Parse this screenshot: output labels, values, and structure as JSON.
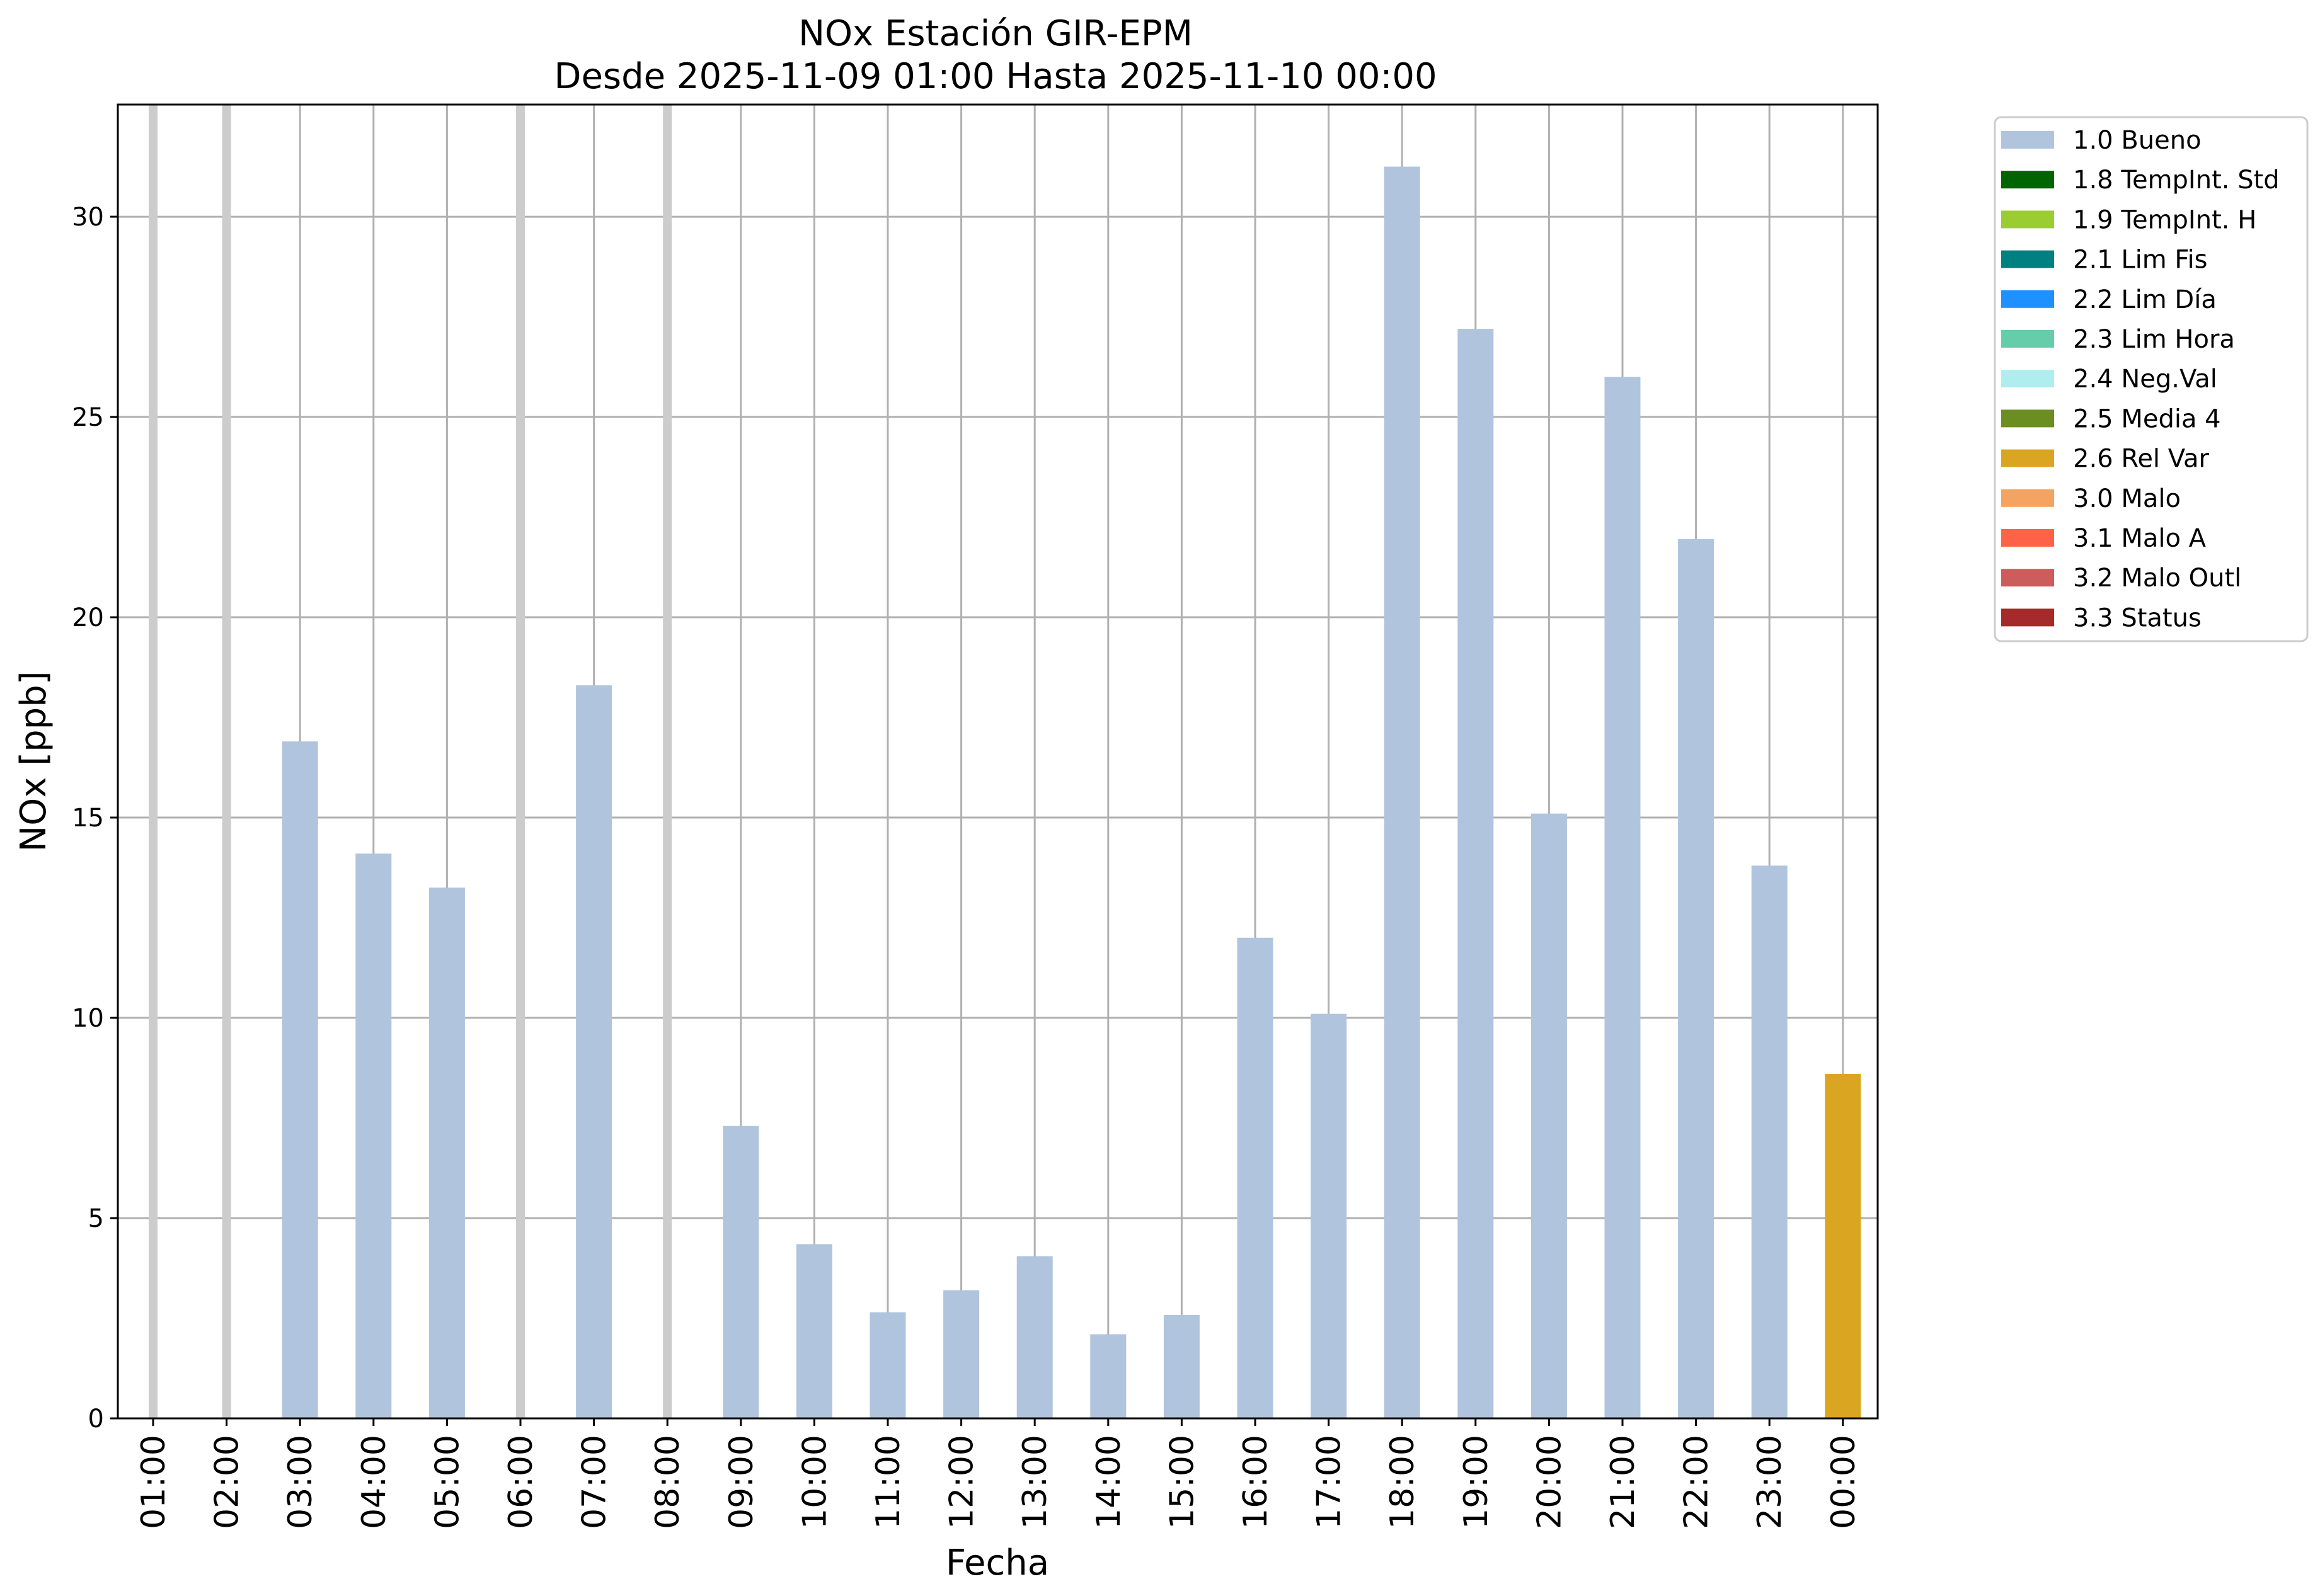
{
  "chart_data": {
    "type": "bar",
    "title": "NOx Estación GIR-EPM",
    "subtitle": "Desde 2025-11-09 01:00 Hasta 2025-11-10 00:00",
    "xlabel": "Fecha",
    "ylabel": "NOx [ppb]",
    "ylim": [
      0,
      32.8
    ],
    "yticks": [
      0,
      5,
      10,
      15,
      20,
      25,
      30
    ],
    "grid": true,
    "legend_placement": "outside-top-right",
    "categories": [
      "01:00",
      "02:00",
      "03:00",
      "04:00",
      "05:00",
      "06:00",
      "07:00",
      "08:00",
      "09:00",
      "10:00",
      "11:00",
      "12:00",
      "13:00",
      "14:00",
      "15:00",
      "16:00",
      "17:00",
      "18:00",
      "19:00",
      "20:00",
      "21:00",
      "22:00",
      "23:00",
      "00:00"
    ],
    "values": [
      null,
      null,
      16.9,
      14.1,
      13.25,
      null,
      18.3,
      null,
      7.3,
      4.35,
      2.65,
      3.2,
      4.05,
      2.1,
      2.58,
      12.0,
      10.1,
      31.25,
      27.2,
      15.1,
      26.0,
      21.95,
      13.8,
      8.6
    ],
    "flags": [
      "missing",
      "missing",
      "1.0 Bueno",
      "1.0 Bueno",
      "1.0 Bueno",
      "missing",
      "1.0 Bueno",
      "missing",
      "1.0 Bueno",
      "1.0 Bueno",
      "1.0 Bueno",
      "1.0 Bueno",
      "1.0 Bueno",
      "1.0 Bueno",
      "1.0 Bueno",
      "1.0 Bueno",
      "1.0 Bueno",
      "1.0 Bueno",
      "1.0 Bueno",
      "1.0 Bueno",
      "1.0 Bueno",
      "1.0 Bueno",
      "1.0 Bueno",
      "2.6 Rel Var"
    ],
    "missing_marker_color": "#cccccc",
    "legend": [
      {
        "label": "1.0 Bueno",
        "color": "#b0c4de"
      },
      {
        "label": "1.8 TempInt. Std",
        "color": "#006400"
      },
      {
        "label": "1.9 TempInt. H",
        "color": "#9acd32"
      },
      {
        "label": "2.1 Lim Fis",
        "color": "#008080"
      },
      {
        "label": "2.2 Lim Día",
        "color": "#1e90ff"
      },
      {
        "label": "2.3 Lim Hora",
        "color": "#66cdaa"
      },
      {
        "label": "2.4 Neg.Val",
        "color": "#afeeee"
      },
      {
        "label": "2.5 Media 4",
        "color": "#6b8e23"
      },
      {
        "label": "2.6 Rel Var",
        "color": "#daa520"
      },
      {
        "label": "3.0 Malo",
        "color": "#f4a460"
      },
      {
        "label": "3.1 Malo A",
        "color": "#ff6347"
      },
      {
        "label": "3.2 Malo Outl",
        "color": "#cd5c5c"
      },
      {
        "label": "3.3 Status",
        "color": "#a52a2a"
      }
    ]
  }
}
